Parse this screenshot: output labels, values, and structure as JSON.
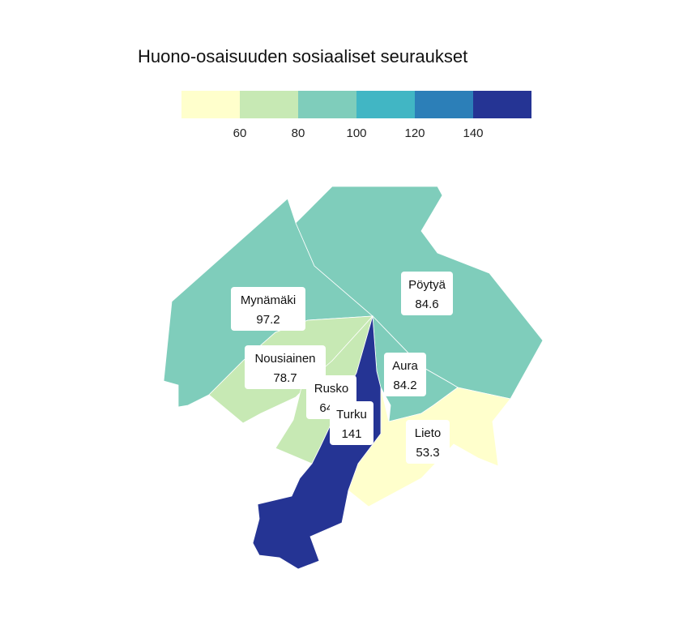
{
  "title": "Huono-osaisuuden sosiaaliset seuraukset",
  "legend": {
    "bins": [
      {
        "from": 40,
        "to": 60,
        "color": "#ffffcc"
      },
      {
        "from": 60,
        "to": 80,
        "color": "#c7e9b4"
      },
      {
        "from": 80,
        "to": 100,
        "color": "#7fcdbb"
      },
      {
        "from": 100,
        "to": 120,
        "color": "#41b6c4"
      },
      {
        "from": 120,
        "to": 140,
        "color": "#2c7fb8"
      },
      {
        "from": 140,
        "to": 160,
        "color": "#253494"
      }
    ],
    "ticks": [
      "60",
      "80",
      "100",
      "120",
      "140"
    ]
  },
  "regions": [
    {
      "name": "Mynämäki",
      "value": "97.2",
      "color": "#7fcdbb"
    },
    {
      "name": "Pöytyä",
      "value": "84.6",
      "color": "#7fcdbb"
    },
    {
      "name": "Nousiainen",
      "value": "78.7",
      "color": "#c7e9b4"
    },
    {
      "name": "Aura",
      "value": "84.2",
      "color": "#7fcdbb"
    },
    {
      "name": "Rusko",
      "value": "64.1",
      "color": "#c7e9b4"
    },
    {
      "name": "Lieto",
      "value": "53.3",
      "color": "#ffffcc"
    },
    {
      "name": "Turku",
      "value": "141",
      "color": "#253494"
    }
  ]
}
